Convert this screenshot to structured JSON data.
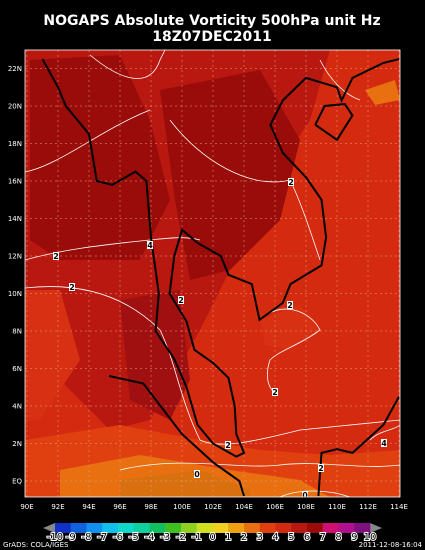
{
  "header": {
    "title": "NOGAPS Absolute Vorticity 500hPa unit Hz",
    "subtitle": "18Z07DEC2011"
  },
  "map": {
    "lat_labels": [
      "22N",
      "20N",
      "18N",
      "16N",
      "14N",
      "12N",
      "10N",
      "8N",
      "6N",
      "4N",
      "2N",
      "EQ"
    ],
    "lon_labels": [
      "90E",
      "92E",
      "94E",
      "96E",
      "98E",
      "100E",
      "102E",
      "104E",
      "106E",
      "108E",
      "110E",
      "112E",
      "114E"
    ],
    "contour_labels": [
      "4",
      "2",
      "2",
      "2",
      "2",
      "2",
      "2",
      "2",
      "0",
      "0",
      "4",
      "2"
    ]
  },
  "colorbar": {
    "labels": [
      -10,
      -9,
      -8,
      -7,
      -6,
      -5,
      -4,
      -3,
      -2,
      -1,
      0,
      1,
      2,
      3,
      4,
      5,
      6,
      7,
      8,
      9,
      10
    ],
    "colors": [
      "#1030c8",
      "#1060e0",
      "#1090f0",
      "#10c0e8",
      "#10d8c8",
      "#10d0a0",
      "#10c060",
      "#40c020",
      "#90d020",
      "#d0e020",
      "#f0d020",
      "#f0a010",
      "#e87010",
      "#e04010",
      "#d42a10",
      "#b81810",
      "#9a0c0a",
      "#d01070",
      "#b01090",
      "#801080"
    ]
  },
  "footer": {
    "left": "GrADS: COLA/IGES",
    "right": "2011-12-08-16:04"
  }
}
